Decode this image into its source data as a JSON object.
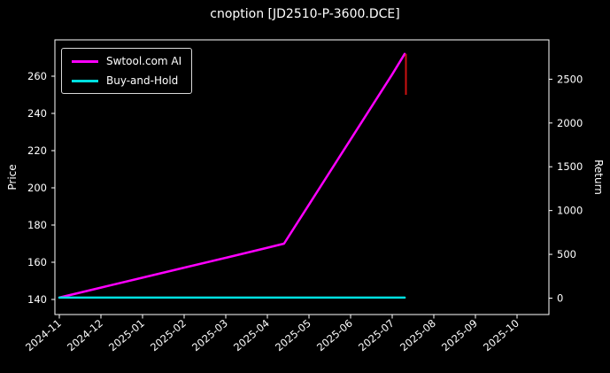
{
  "chart_data": {
    "type": "line",
    "title": "cnoption [JD2510-P-3600.DCE]",
    "xlabel": "",
    "ylabel_left": "Price",
    "ylabel_right": "Return",
    "background_color": "#000000",
    "grid": false,
    "legend_position": "upper-left",
    "x_tick_labels": [
      "2024-11",
      "2024-12",
      "2025-01",
      "2025-02",
      "2025-03",
      "2025-04",
      "2025-05",
      "2025-06",
      "2025-07",
      "2025-08",
      "2025-09",
      "2025-10"
    ],
    "y_left_ticks": [
      140,
      160,
      180,
      200,
      220,
      240,
      260
    ],
    "y_right_ticks": [
      0,
      500,
      1000,
      1500,
      2000,
      2500
    ],
    "y_left_range": [
      133,
      274
    ],
    "series": [
      {
        "name": "Swtool.com AI",
        "color": "#ff00ff",
        "x_months_from_2024_11": [
          0,
          1,
          2,
          3,
          4,
          5,
          5.4,
          6,
          7,
          8,
          8.3
        ],
        "price": [
          141,
          146.4,
          151.7,
          157.1,
          162.4,
          167.8,
          170,
          191,
          226,
          261,
          272
        ]
      },
      {
        "name": "Buy-and-Hold",
        "color": "#00e0e0",
        "x_months_from_2024_11": [
          0,
          8.3
        ],
        "price": [
          141,
          141
        ]
      }
    ],
    "end_marker": {
      "x_month": 8.33,
      "price_top": 272,
      "price_bottom": 250,
      "color": "#cc1111"
    }
  }
}
